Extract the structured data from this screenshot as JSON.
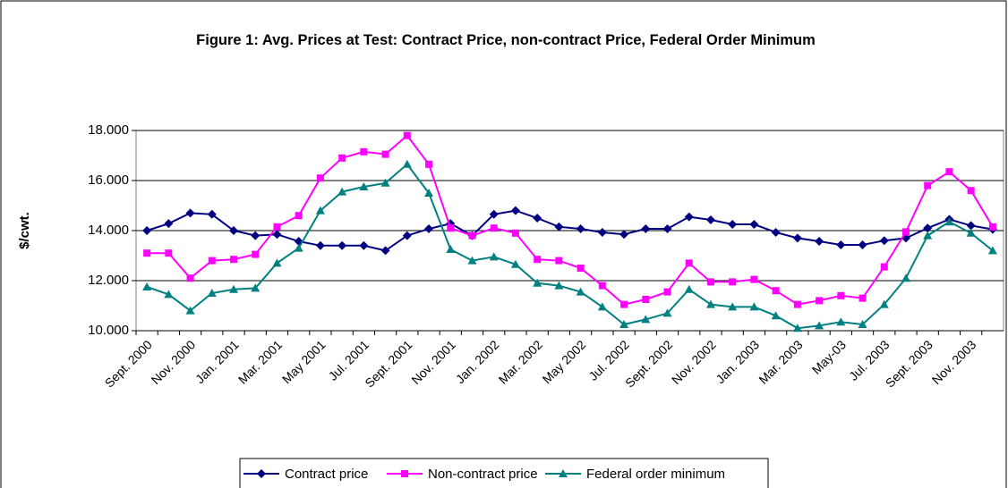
{
  "chart_data": {
    "type": "line",
    "title": "Figure 1: Avg. Prices at Test: Contract Price, non-contract Price, Federal Order Minimum",
    "y_label": "$/cwt.",
    "categories": [
      "Sept. 2000",
      null,
      "Nov. 2000",
      null,
      "Jan. 2001",
      null,
      "Mar. 2001",
      null,
      "May 2001",
      null,
      "Jul. 2001",
      null,
      "Sept. 2001",
      null,
      "Nov. 2001",
      null,
      "Jan. 2002",
      null,
      "Mar. 2002",
      null,
      "May 2002",
      null,
      "Jul. 2002",
      null,
      "Sept. 2002",
      null,
      "Nov. 2002",
      null,
      "Jan. 2003",
      null,
      "Mar. 2003",
      null,
      "May-03",
      null,
      "Jul. 2003",
      null,
      "Sept. 2003",
      null,
      "Nov. 2003",
      null
    ],
    "ylim": [
      10,
      18
    ],
    "yticks": [
      {
        "value": 10,
        "label": "10.000"
      },
      {
        "value": 12,
        "label": "12.000"
      },
      {
        "value": 14,
        "label": "14.000"
      },
      {
        "value": 16,
        "label": "16.000"
      },
      {
        "value": 18,
        "label": "18.000"
      }
    ],
    "grid": true,
    "legend": "bottom",
    "series": [
      {
        "name": "Contract price",
        "color": "#000080",
        "marker": "diamond",
        "values": [
          14.0,
          14.28,
          14.7,
          14.65,
          14.0,
          13.8,
          13.85,
          13.57,
          13.4,
          13.4,
          13.4,
          13.2,
          13.8,
          14.07,
          14.28,
          13.8,
          14.65,
          14.8,
          14.5,
          14.15,
          14.07,
          13.93,
          13.85,
          14.07,
          14.07,
          14.55,
          14.43,
          14.25,
          14.25,
          13.93,
          13.7,
          13.57,
          13.43,
          13.43,
          13.6,
          13.7,
          14.1,
          14.45,
          14.2,
          14.05
        ]
      },
      {
        "name": "Non-contract price",
        "color": "#ff00ff",
        "marker": "square",
        "values": [
          13.1,
          13.1,
          12.1,
          12.8,
          12.85,
          13.05,
          14.15,
          14.6,
          16.1,
          16.9,
          17.15,
          17.05,
          17.8,
          16.65,
          14.1,
          13.8,
          14.1,
          13.9,
          12.85,
          12.8,
          12.5,
          11.8,
          11.05,
          11.25,
          11.55,
          12.7,
          11.95,
          11.95,
          12.05,
          11.6,
          11.05,
          11.2,
          11.4,
          11.3,
          12.55,
          13.95,
          15.8,
          16.35,
          15.6,
          14.15
        ]
      },
      {
        "name": "Federal order minimum",
        "color": "#008080",
        "marker": "triangle",
        "values": [
          11.75,
          11.45,
          10.8,
          11.5,
          11.65,
          11.7,
          12.7,
          13.3,
          14.8,
          15.55,
          15.75,
          15.9,
          16.65,
          15.5,
          13.25,
          12.8,
          12.95,
          12.65,
          11.9,
          11.8,
          11.55,
          10.95,
          10.25,
          10.45,
          10.7,
          11.65,
          11.05,
          10.95,
          10.95,
          10.6,
          10.1,
          10.2,
          10.35,
          10.25,
          11.05,
          12.1,
          13.8,
          14.35,
          13.9,
          13.2
        ]
      }
    ]
  }
}
